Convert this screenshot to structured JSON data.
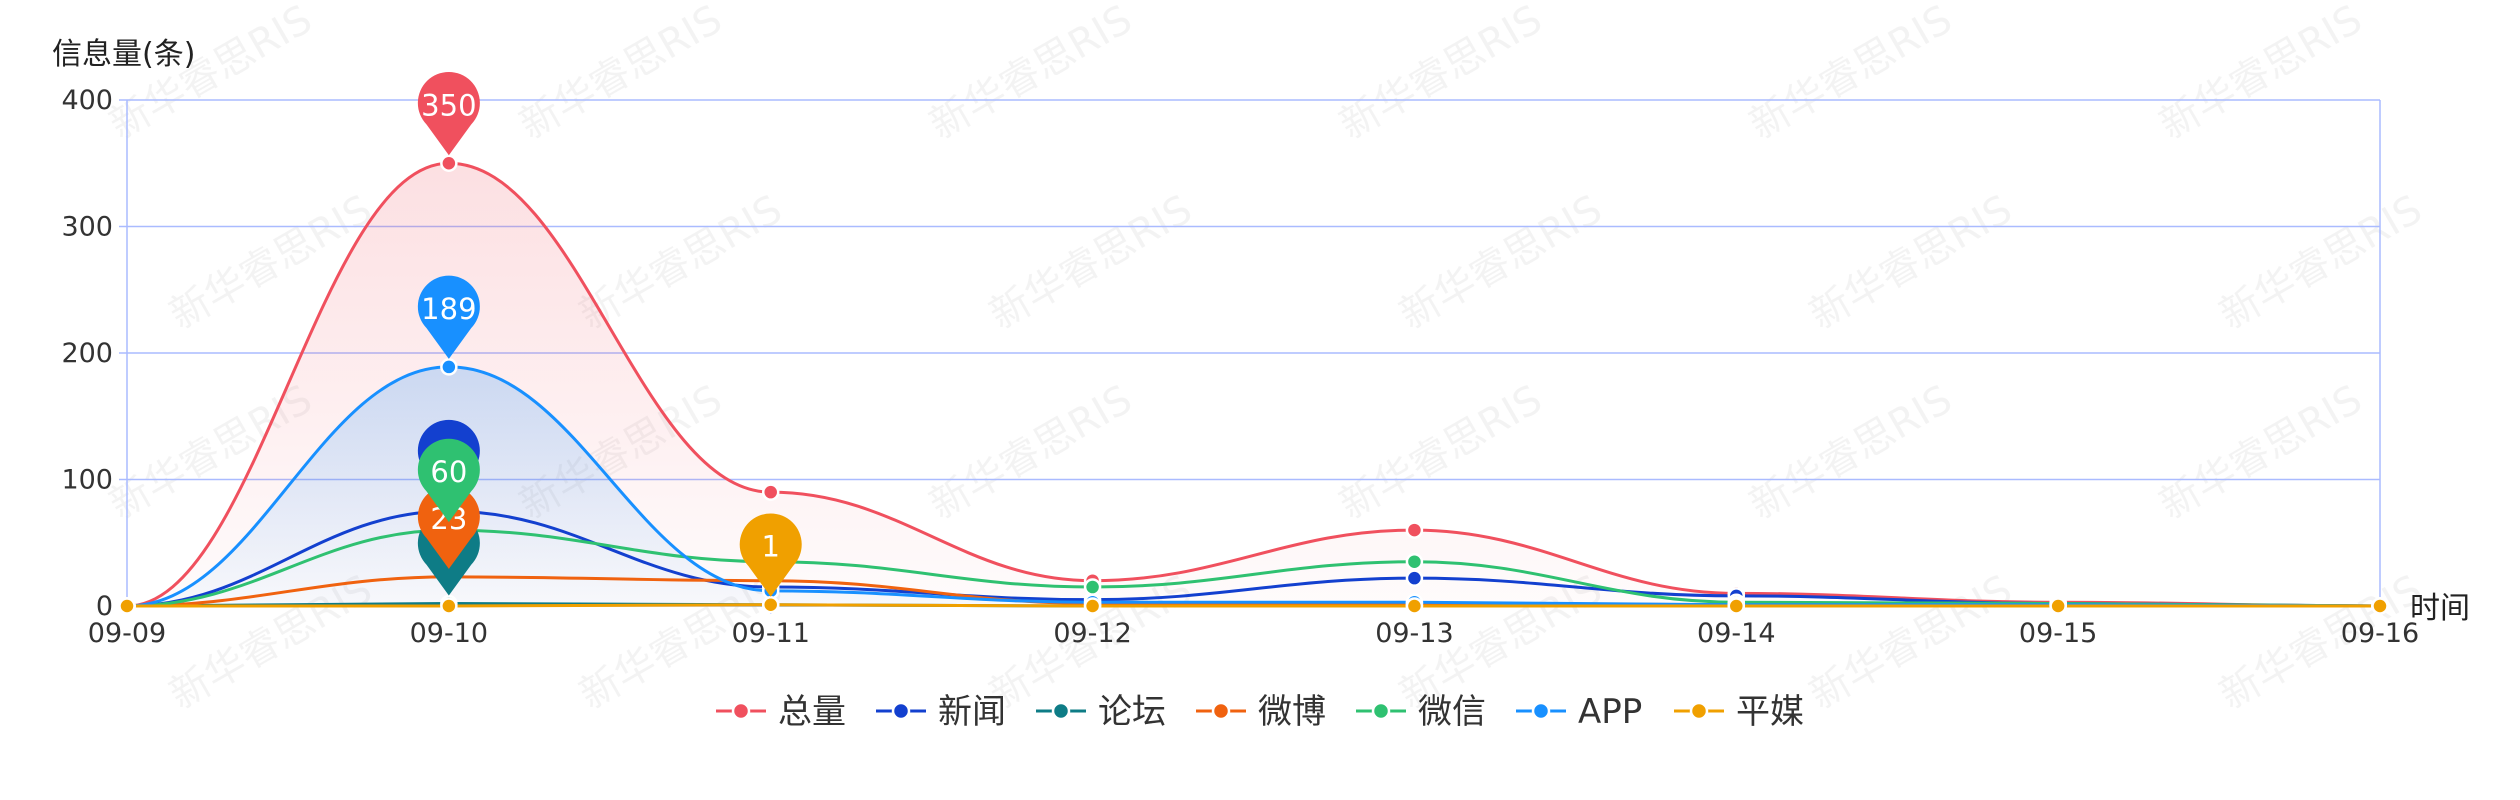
{
  "chart_data": {
    "type": "line",
    "ylabel": "信息量(条)",
    "xlabel": "时间",
    "categories": [
      "09-09",
      "09-10",
      "09-11",
      "09-12",
      "09-13",
      "09-14",
      "09-15",
      "09-16"
    ],
    "ylim": [
      0,
      400
    ],
    "yticks": [
      0,
      100,
      200,
      300,
      400
    ],
    "grid": true,
    "legend_position": "bottom",
    "watermark": "新华睿思RIS",
    "series": [
      {
        "name": "总量",
        "color": "#f0505e",
        "values": [
          0,
          350,
          90,
          20,
          60,
          10,
          3,
          0
        ],
        "area": true,
        "marker": {
          "index": 1,
          "label": "350"
        }
      },
      {
        "name": "新闻",
        "color": "#1340cf",
        "values": [
          0,
          75,
          15,
          5,
          22,
          8,
          2,
          0
        ],
        "area": false,
        "marker": {
          "index": 1,
          "label": ""
        }
      },
      {
        "name": "论坛",
        "color": "#0e7c86",
        "values": [
          0,
          2,
          1,
          0,
          0,
          0,
          0,
          0
        ],
        "area": false,
        "marker": {
          "index": 1,
          "label": ""
        }
      },
      {
        "name": "微博",
        "color": "#f0620f",
        "values": [
          0,
          23,
          20,
          2,
          2,
          1,
          1,
          0
        ],
        "area": false,
        "marker": {
          "index": 1,
          "label": "23"
        }
      },
      {
        "name": "微信",
        "color": "#2fc171",
        "values": [
          0,
          60,
          35,
          15,
          35,
          3,
          2,
          0
        ],
        "area": false,
        "marker": {
          "index": 1,
          "label": "60"
        }
      },
      {
        "name": "APP",
        "color": "#1890ff",
        "values": [
          0,
          189,
          12,
          3,
          3,
          1,
          1,
          0
        ],
        "area": true,
        "marker": {
          "index": 1,
          "label": "189"
        }
      },
      {
        "name": "平媒",
        "color": "#f0a000",
        "values": [
          0,
          0,
          1,
          0,
          0,
          0,
          0,
          0
        ],
        "area": false,
        "marker": {
          "index": 2,
          "label": "1"
        }
      }
    ]
  }
}
